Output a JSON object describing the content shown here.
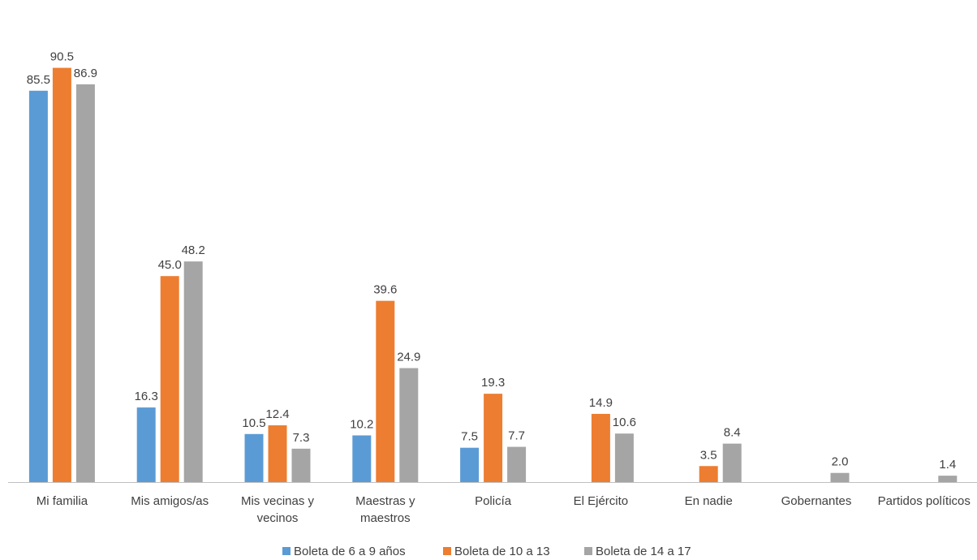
{
  "chart_data": {
    "type": "bar",
    "title": "",
    "xlabel": "",
    "ylabel": "",
    "ylim": [
      0,
      100
    ],
    "grid": false,
    "legend_position": "bottom",
    "categories": [
      [
        "Mi familia"
      ],
      [
        "Mis amigos/as"
      ],
      [
        "Mis vecinas y",
        "vecinos"
      ],
      [
        "Maestras y",
        "maestros"
      ],
      [
        "Policía"
      ],
      [
        "El Ejército"
      ],
      [
        "En nadie"
      ],
      [
        "Gobernantes"
      ],
      [
        "Partidos políticos"
      ]
    ],
    "series": [
      {
        "name": "Boleta de 6 a 9 años",
        "color": "#5B9BD5",
        "values": [
          85.5,
          16.3,
          10.5,
          10.2,
          7.5,
          null,
          null,
          null,
          null
        ],
        "labels": [
          "85.5",
          "16.3",
          "10.5",
          "10.2",
          "7.5",
          null,
          null,
          null,
          null
        ]
      },
      {
        "name": "Boleta de 10 a 13",
        "color": "#ED7D31",
        "values": [
          90.5,
          45.0,
          12.4,
          39.6,
          19.3,
          14.9,
          3.5,
          null,
          null
        ],
        "labels": [
          "90.5",
          "45.0",
          "12.4",
          "39.6",
          "19.3",
          "14.9",
          "3.5",
          null,
          null
        ]
      },
      {
        "name": "Boleta de 14 a 17",
        "color": "#A5A5A5",
        "values": [
          86.9,
          48.2,
          7.3,
          24.9,
          7.7,
          10.6,
          8.4,
          2.0,
          1.4
        ],
        "labels": [
          "86.9",
          "48.2",
          "7.3",
          "24.9",
          "7.7",
          "10.6",
          "8.4",
          "2.0",
          "1.4"
        ]
      }
    ],
    "axis_color": "#bfbfbf"
  }
}
